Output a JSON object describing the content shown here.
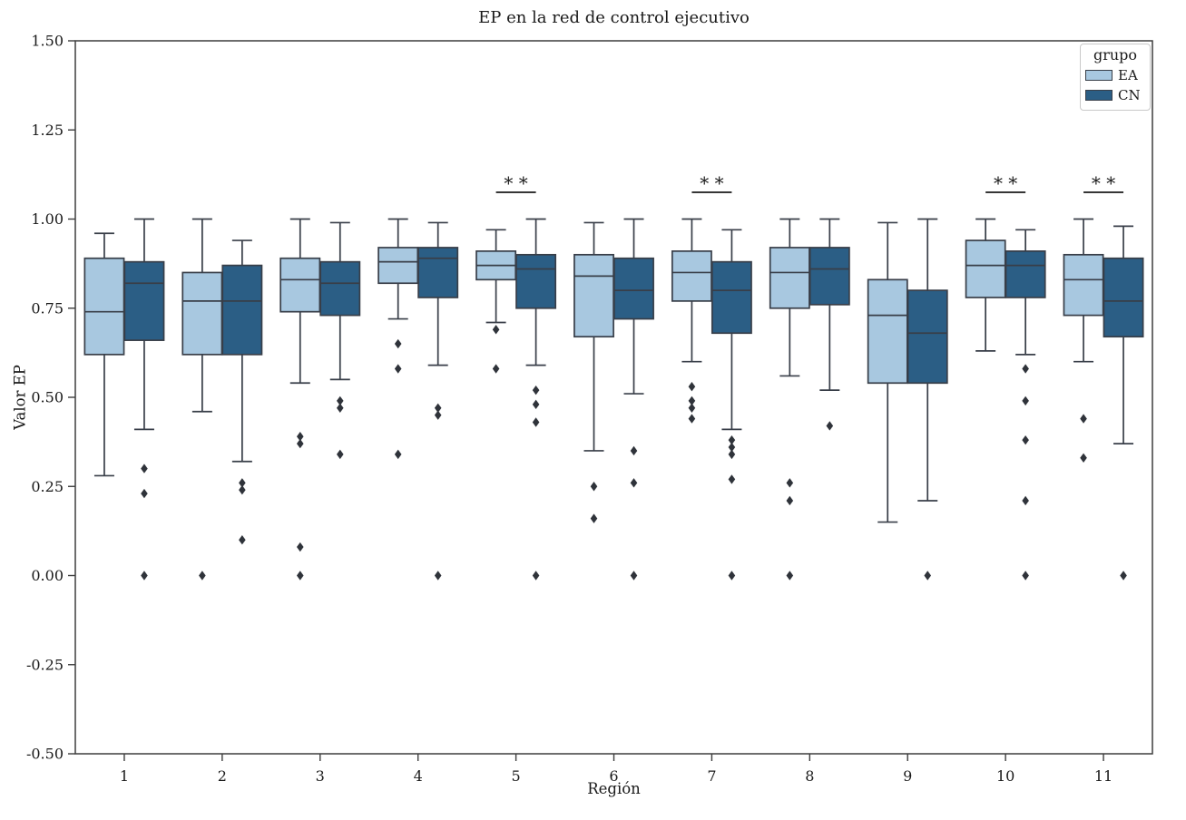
{
  "chart_data": {
    "type": "grouped_boxplot",
    "title": "EP en la red de control ejecutivo",
    "xlabel": "Región",
    "ylabel": "Valor EP",
    "ylim": [
      -0.5,
      1.5
    ],
    "yticks": [
      "1.50",
      "1.25",
      "1.00",
      "0.75",
      "0.50",
      "0.25",
      "0.00",
      "-0.25",
      "-0.50"
    ],
    "categories": [
      "1",
      "2",
      "3",
      "4",
      "5",
      "6",
      "7",
      "8",
      "9",
      "10",
      "11"
    ],
    "grid": false,
    "legend": {
      "title": "grupo",
      "position": "upper-right",
      "entries": [
        {
          "label": "EA",
          "color": "#a8c8e0"
        },
        {
          "label": "CN",
          "color": "#2b5e85"
        }
      ]
    },
    "significance": {
      "marker": "**",
      "regions": [
        "5",
        "7",
        "10",
        "11"
      ],
      "line_value": 1.075
    },
    "series": [
      {
        "name": "EA",
        "color": "#a8c8e0",
        "boxes": [
          {
            "region": "1",
            "whislo": 0.28,
            "q1": 0.62,
            "med": 0.74,
            "q3": 0.89,
            "whishi": 0.96,
            "outliers": []
          },
          {
            "region": "2",
            "whislo": 0.46,
            "q1": 0.62,
            "med": 0.77,
            "q3": 0.85,
            "whishi": 1.0,
            "outliers": [
              0.0
            ]
          },
          {
            "region": "3",
            "whislo": 0.54,
            "q1": 0.74,
            "med": 0.83,
            "q3": 0.89,
            "whishi": 1.0,
            "outliers": [
              0.39,
              0.37,
              0.08,
              0.0
            ]
          },
          {
            "region": "4",
            "whislo": 0.72,
            "q1": 0.82,
            "med": 0.88,
            "q3": 0.92,
            "whishi": 1.0,
            "outliers": [
              0.65,
              0.58,
              0.34
            ]
          },
          {
            "region": "5",
            "whislo": 0.71,
            "q1": 0.83,
            "med": 0.87,
            "q3": 0.91,
            "whishi": 0.97,
            "outliers": [
              0.69,
              0.58
            ]
          },
          {
            "region": "6",
            "whislo": 0.35,
            "q1": 0.67,
            "med": 0.84,
            "q3": 0.9,
            "whishi": 0.99,
            "outliers": [
              0.25,
              0.16
            ]
          },
          {
            "region": "7",
            "whislo": 0.6,
            "q1": 0.77,
            "med": 0.85,
            "q3": 0.91,
            "whishi": 1.0,
            "outliers": [
              0.53,
              0.49,
              0.47,
              0.44
            ]
          },
          {
            "region": "8",
            "whislo": 0.56,
            "q1": 0.75,
            "med": 0.85,
            "q3": 0.92,
            "whishi": 1.0,
            "outliers": [
              0.26,
              0.21,
              0.0
            ]
          },
          {
            "region": "9",
            "whislo": 0.15,
            "q1": 0.54,
            "med": 0.73,
            "q3": 0.83,
            "whishi": 0.99,
            "outliers": []
          },
          {
            "region": "10",
            "whislo": 0.63,
            "q1": 0.78,
            "med": 0.87,
            "q3": 0.94,
            "whishi": 1.0,
            "outliers": []
          },
          {
            "region": "11",
            "whislo": 0.6,
            "q1": 0.73,
            "med": 0.83,
            "q3": 0.9,
            "whishi": 1.0,
            "outliers": [
              0.44,
              0.33
            ]
          }
        ]
      },
      {
        "name": "CN",
        "color": "#2b5e85",
        "boxes": [
          {
            "region": "1",
            "whislo": 0.41,
            "q1": 0.66,
            "med": 0.82,
            "q3": 0.88,
            "whishi": 1.0,
            "outliers": [
              0.3,
              0.23,
              0.0
            ]
          },
          {
            "region": "2",
            "whislo": 0.32,
            "q1": 0.62,
            "med": 0.77,
            "q3": 0.87,
            "whishi": 0.94,
            "outliers": [
              0.26,
              0.24,
              0.1
            ]
          },
          {
            "region": "3",
            "whislo": 0.55,
            "q1": 0.73,
            "med": 0.82,
            "q3": 0.88,
            "whishi": 0.99,
            "outliers": [
              0.49,
              0.47,
              0.34
            ]
          },
          {
            "region": "4",
            "whislo": 0.59,
            "q1": 0.78,
            "med": 0.89,
            "q3": 0.92,
            "whishi": 0.99,
            "outliers": [
              0.47,
              0.45,
              0.0
            ]
          },
          {
            "region": "5",
            "whislo": 0.59,
            "q1": 0.75,
            "med": 0.86,
            "q3": 0.9,
            "whishi": 1.0,
            "outliers": [
              0.52,
              0.48,
              0.43,
              0.0
            ]
          },
          {
            "region": "6",
            "whislo": 0.51,
            "q1": 0.72,
            "med": 0.8,
            "q3": 0.89,
            "whishi": 1.0,
            "outliers": [
              0.35,
              0.26,
              0.0
            ]
          },
          {
            "region": "7",
            "whislo": 0.41,
            "q1": 0.68,
            "med": 0.8,
            "q3": 0.88,
            "whishi": 0.97,
            "outliers": [
              0.38,
              0.36,
              0.34,
              0.27,
              0.0
            ]
          },
          {
            "region": "8",
            "whislo": 0.52,
            "q1": 0.76,
            "med": 0.86,
            "q3": 0.92,
            "whishi": 1.0,
            "outliers": [
              0.42
            ]
          },
          {
            "region": "9",
            "whislo": 0.21,
            "q1": 0.54,
            "med": 0.68,
            "q3": 0.8,
            "whishi": 1.0,
            "outliers": [
              0.0
            ]
          },
          {
            "region": "10",
            "whislo": 0.62,
            "q1": 0.78,
            "med": 0.87,
            "q3": 0.91,
            "whishi": 0.97,
            "outliers": [
              0.58,
              0.49,
              0.38,
              0.21,
              0.0
            ]
          },
          {
            "region": "11",
            "whislo": 0.37,
            "q1": 0.67,
            "med": 0.77,
            "q3": 0.89,
            "whishi": 0.98,
            "outliers": [
              0.0
            ]
          }
        ]
      }
    ],
    "colors": {
      "edge": "#383e48",
      "flier": "#2f333a",
      "spine": "#3d3d3d",
      "text": "#1a1a1a",
      "sig": "#1a1a1a",
      "legend_border": "#c9c9c9"
    }
  }
}
